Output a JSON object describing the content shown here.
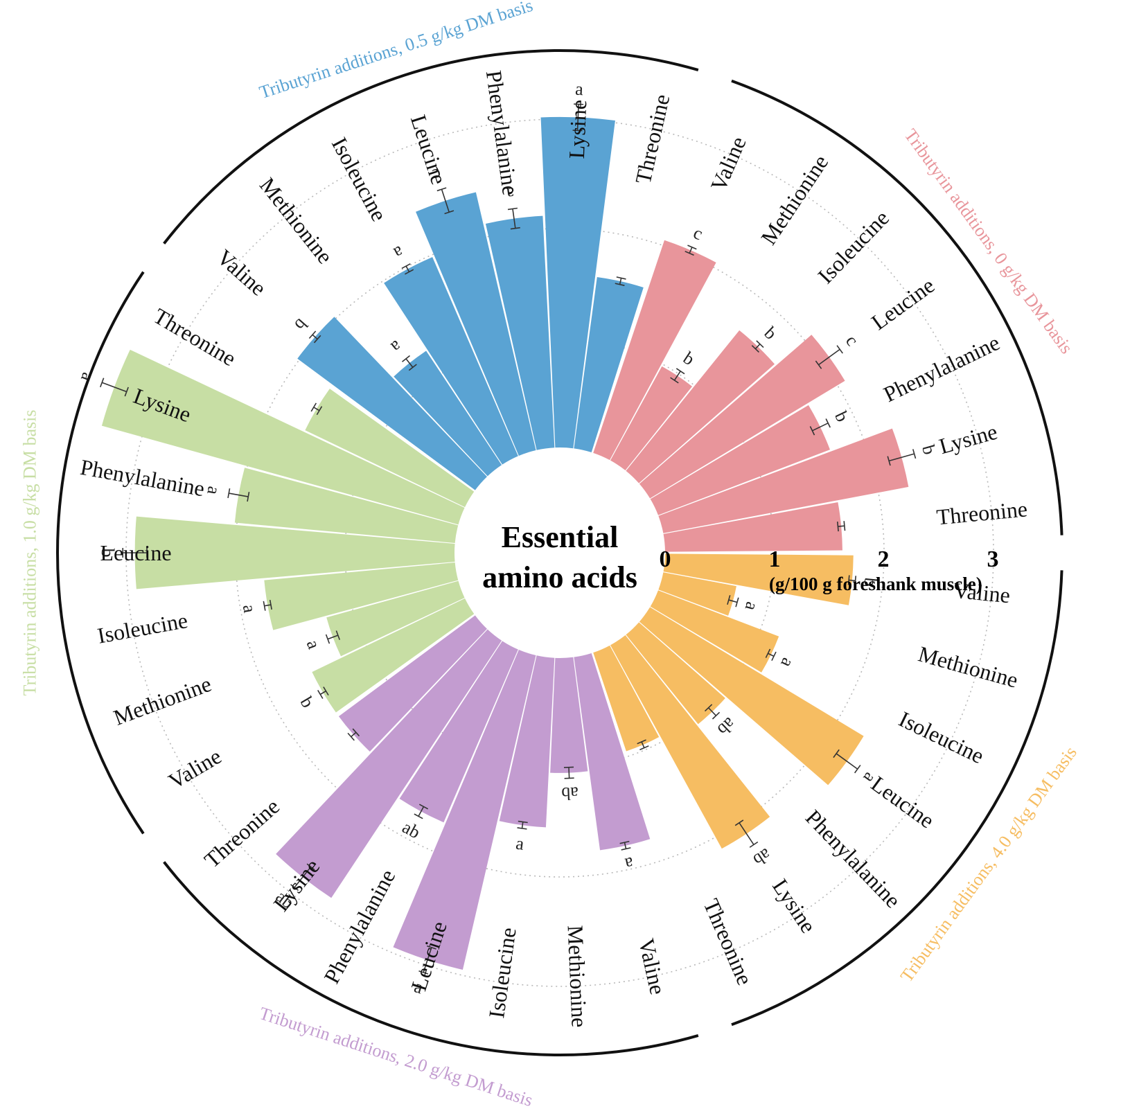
{
  "chart_data": {
    "type": "bar",
    "layout": "radial",
    "center_title_line1": "Essential",
    "center_title_line2": "amino acids",
    "radial_ticks": [
      "0",
      "1",
      "2",
      "3"
    ],
    "radial_tick_values": [
      0,
      1,
      2,
      3
    ],
    "unit_label": "(g/100 g foreshank muscle)",
    "grid": "dotted-circles",
    "categories": [
      "Threonine",
      "Lysine",
      "Phenylalanine",
      "Leucine",
      "Isoleucine",
      "Methionine",
      "Valine"
    ],
    "groups": [
      {
        "name": "Tributyrin additions, 0 g/kg DM basis",
        "color": "#e8959b",
        "values": [
          1.62,
          2.28,
          1.68,
          2.08,
          1.65,
          0.98,
          2.05
        ],
        "errors": [
          0.03,
          0.12,
          0.08,
          0.12,
          0.03,
          0.05,
          0.03
        ],
        "letters": [
          "",
          "b",
          "b",
          "c",
          "b",
          "b",
          "c"
        ]
      },
      {
        "name": "Tributyrin additions, 0.5 g/kg DM basis",
        "color": "#5aa3d3",
        "values": [
          1.58,
          3.02,
          2.12,
          2.42,
          1.98,
          1.25,
          2.02
        ],
        "errors": [
          0.03,
          0.12,
          0.09,
          0.11,
          0.03,
          0.05,
          0.03
        ],
        "letters": [
          "",
          "a",
          "a",
          "c",
          "a",
          "a",
          "b"
        ]
      },
      {
        "name": "Tributyrin additions, 1.0 g/kg DM basis",
        "color": "#c7dea4",
        "values": [
          1.62,
          3.38,
          2.02,
          2.92,
          1.75,
          1.25,
          1.55
        ],
        "errors": [
          0.03,
          0.12,
          0.09,
          0.11,
          0.03,
          0.05,
          0.03
        ],
        "letters": [
          "",
          "a",
          "a",
          "b",
          "a",
          "a",
          "b"
        ]
      },
      {
        "name": "Tributyrin additions, 2.0 g/kg DM basis",
        "color": "#c39cd0",
        "values": [
          1.55,
          2.82,
          1.72,
          2.95,
          1.55,
          1.05,
          1.78
        ],
        "errors": [
          0.03,
          0.12,
          0.05,
          0.12,
          0.03,
          0.05,
          0.03
        ],
        "letters": [
          "",
          "ab",
          "ab",
          "a",
          "a",
          "ab",
          "a"
        ]
      },
      {
        "name": "Tributyrin additions, 4.0 g/kg DM basis",
        "color": "#f6bd62",
        "values": [
          0.95,
          2.12,
          1.05,
          2.28,
          1.18,
          0.68,
          1.72
        ],
        "errors": [
          0.03,
          0.12,
          0.05,
          0.12,
          0.03,
          0.04,
          0.03
        ],
        "letters": [
          "",
          "ab",
          "ab",
          "a",
          "a",
          "a",
          "b"
        ]
      }
    ]
  }
}
